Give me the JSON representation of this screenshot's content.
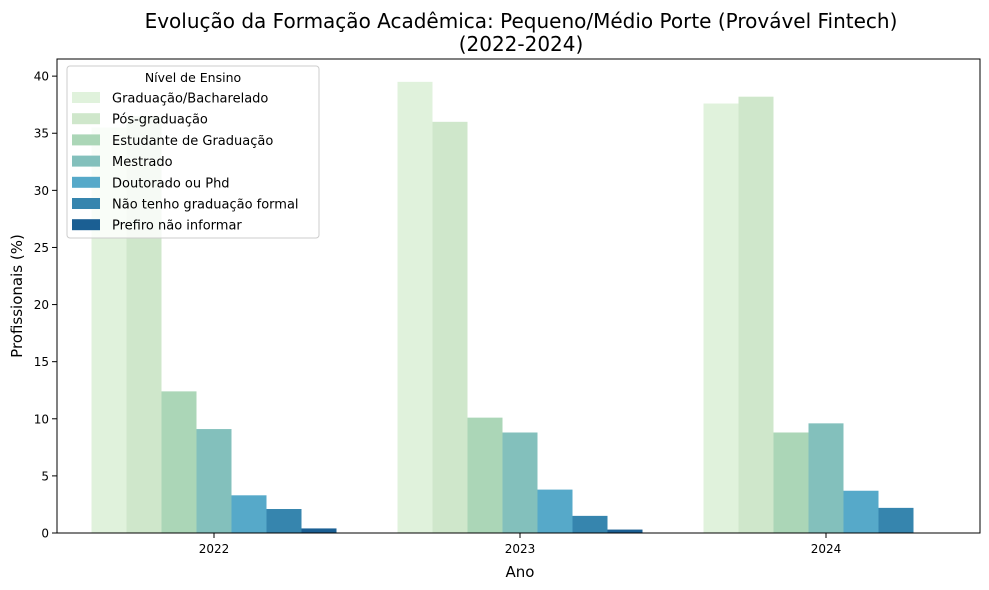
{
  "chart_data": {
    "type": "bar",
    "title_line1": "Evolução da Formação Acadêmica: Pequeno/Médio Porte (Provável Fintech)",
    "title_line2": "(2022-2024)",
    "xlabel": "Ano",
    "ylabel": "Profissionais (%)",
    "categories": [
      "2022",
      "2023",
      "2024"
    ],
    "ylim": [
      0,
      41.5
    ],
    "yticks": [
      0,
      5,
      10,
      15,
      20,
      25,
      30,
      35,
      40
    ],
    "legend_title": "Nível de Ensino",
    "legend_position": "top-left",
    "grid": false,
    "series": [
      {
        "name": "Graduação/Bacharelado",
        "color": "#e0f2dc",
        "values": [
          35.5,
          39.5,
          37.6
        ]
      },
      {
        "name": "Pós-graduação",
        "color": "#cfe7cb",
        "values": [
          36.5,
          36.0,
          38.2
        ]
      },
      {
        "name": "Estudante de Graduação",
        "color": "#abd6b7",
        "values": [
          12.4,
          10.1,
          8.8
        ]
      },
      {
        "name": "Mestrado",
        "color": "#83c0bc",
        "values": [
          9.1,
          8.8,
          9.6
        ]
      },
      {
        "name": "Doutorado ou Phd",
        "color": "#56a9c9",
        "values": [
          3.3,
          3.8,
          3.7
        ]
      },
      {
        "name": "Não tenho graduação formal",
        "color": "#3685ae",
        "values": [
          2.1,
          1.5,
          2.2
        ]
      },
      {
        "name": "Prefiro não informar",
        "color": "#1b5f93",
        "values": [
          0.4,
          0.3,
          0.0
        ]
      }
    ]
  }
}
